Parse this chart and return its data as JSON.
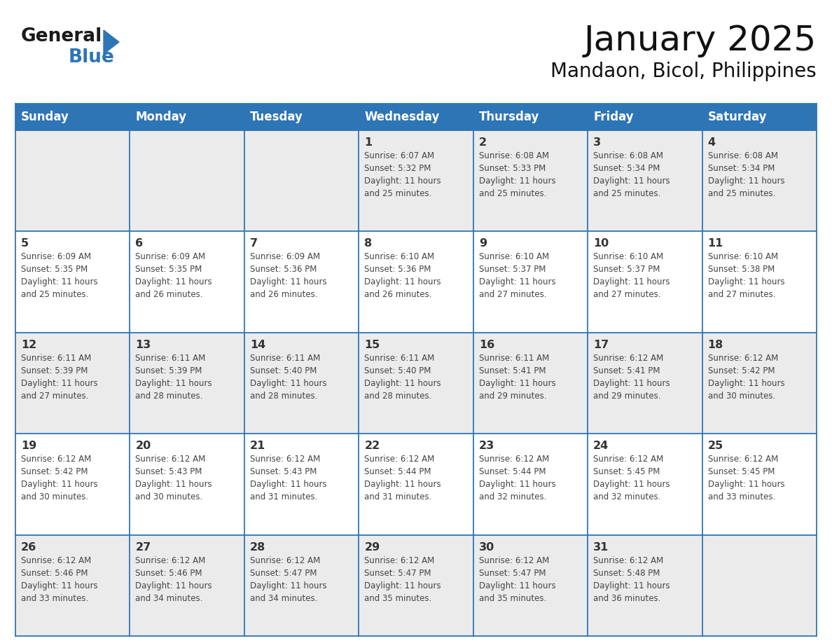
{
  "title": "January 2025",
  "subtitle": "Mandaon, Bicol, Philippines",
  "header_bg": "#2E75B6",
  "header_text_color": "#FFFFFF",
  "days_of_week": [
    "Sunday",
    "Monday",
    "Tuesday",
    "Wednesday",
    "Thursday",
    "Friday",
    "Saturday"
  ],
  "weeks": [
    [
      {
        "day": "",
        "info": ""
      },
      {
        "day": "",
        "info": ""
      },
      {
        "day": "",
        "info": ""
      },
      {
        "day": "1",
        "info": "Sunrise: 6:07 AM\nSunset: 5:32 PM\nDaylight: 11 hours\nand 25 minutes."
      },
      {
        "day": "2",
        "info": "Sunrise: 6:08 AM\nSunset: 5:33 PM\nDaylight: 11 hours\nand 25 minutes."
      },
      {
        "day": "3",
        "info": "Sunrise: 6:08 AM\nSunset: 5:34 PM\nDaylight: 11 hours\nand 25 minutes."
      },
      {
        "day": "4",
        "info": "Sunrise: 6:08 AM\nSunset: 5:34 PM\nDaylight: 11 hours\nand 25 minutes."
      }
    ],
    [
      {
        "day": "5",
        "info": "Sunrise: 6:09 AM\nSunset: 5:35 PM\nDaylight: 11 hours\nand 25 minutes."
      },
      {
        "day": "6",
        "info": "Sunrise: 6:09 AM\nSunset: 5:35 PM\nDaylight: 11 hours\nand 26 minutes."
      },
      {
        "day": "7",
        "info": "Sunrise: 6:09 AM\nSunset: 5:36 PM\nDaylight: 11 hours\nand 26 minutes."
      },
      {
        "day": "8",
        "info": "Sunrise: 6:10 AM\nSunset: 5:36 PM\nDaylight: 11 hours\nand 26 minutes."
      },
      {
        "day": "9",
        "info": "Sunrise: 6:10 AM\nSunset: 5:37 PM\nDaylight: 11 hours\nand 27 minutes."
      },
      {
        "day": "10",
        "info": "Sunrise: 6:10 AM\nSunset: 5:37 PM\nDaylight: 11 hours\nand 27 minutes."
      },
      {
        "day": "11",
        "info": "Sunrise: 6:10 AM\nSunset: 5:38 PM\nDaylight: 11 hours\nand 27 minutes."
      }
    ],
    [
      {
        "day": "12",
        "info": "Sunrise: 6:11 AM\nSunset: 5:39 PM\nDaylight: 11 hours\nand 27 minutes."
      },
      {
        "day": "13",
        "info": "Sunrise: 6:11 AM\nSunset: 5:39 PM\nDaylight: 11 hours\nand 28 minutes."
      },
      {
        "day": "14",
        "info": "Sunrise: 6:11 AM\nSunset: 5:40 PM\nDaylight: 11 hours\nand 28 minutes."
      },
      {
        "day": "15",
        "info": "Sunrise: 6:11 AM\nSunset: 5:40 PM\nDaylight: 11 hours\nand 28 minutes."
      },
      {
        "day": "16",
        "info": "Sunrise: 6:11 AM\nSunset: 5:41 PM\nDaylight: 11 hours\nand 29 minutes."
      },
      {
        "day": "17",
        "info": "Sunrise: 6:12 AM\nSunset: 5:41 PM\nDaylight: 11 hours\nand 29 minutes."
      },
      {
        "day": "18",
        "info": "Sunrise: 6:12 AM\nSunset: 5:42 PM\nDaylight: 11 hours\nand 30 minutes."
      }
    ],
    [
      {
        "day": "19",
        "info": "Sunrise: 6:12 AM\nSunset: 5:42 PM\nDaylight: 11 hours\nand 30 minutes."
      },
      {
        "day": "20",
        "info": "Sunrise: 6:12 AM\nSunset: 5:43 PM\nDaylight: 11 hours\nand 30 minutes."
      },
      {
        "day": "21",
        "info": "Sunrise: 6:12 AM\nSunset: 5:43 PM\nDaylight: 11 hours\nand 31 minutes."
      },
      {
        "day": "22",
        "info": "Sunrise: 6:12 AM\nSunset: 5:44 PM\nDaylight: 11 hours\nand 31 minutes."
      },
      {
        "day": "23",
        "info": "Sunrise: 6:12 AM\nSunset: 5:44 PM\nDaylight: 11 hours\nand 32 minutes."
      },
      {
        "day": "24",
        "info": "Sunrise: 6:12 AM\nSunset: 5:45 PM\nDaylight: 11 hours\nand 32 minutes."
      },
      {
        "day": "25",
        "info": "Sunrise: 6:12 AM\nSunset: 5:45 PM\nDaylight: 11 hours\nand 33 minutes."
      }
    ],
    [
      {
        "day": "26",
        "info": "Sunrise: 6:12 AM\nSunset: 5:46 PM\nDaylight: 11 hours\nand 33 minutes."
      },
      {
        "day": "27",
        "info": "Sunrise: 6:12 AM\nSunset: 5:46 PM\nDaylight: 11 hours\nand 34 minutes."
      },
      {
        "day": "28",
        "info": "Sunrise: 6:12 AM\nSunset: 5:47 PM\nDaylight: 11 hours\nand 34 minutes."
      },
      {
        "day": "29",
        "info": "Sunrise: 6:12 AM\nSunset: 5:47 PM\nDaylight: 11 hours\nand 35 minutes."
      },
      {
        "day": "30",
        "info": "Sunrise: 6:12 AM\nSunset: 5:47 PM\nDaylight: 11 hours\nand 35 minutes."
      },
      {
        "day": "31",
        "info": "Sunrise: 6:12 AM\nSunset: 5:48 PM\nDaylight: 11 hours\nand 36 minutes."
      },
      {
        "day": "",
        "info": ""
      }
    ]
  ],
  "row_bg_colors": [
    "#EBEBEB",
    "#FFFFFF",
    "#EBEBEB",
    "#FFFFFF",
    "#EBEBEB"
  ],
  "grid_color": "#2E75B6",
  "day_number_color": "#333333",
  "info_text_color": "#444444",
  "logo_general_color": "#1a1a1a",
  "logo_blue_color": "#2E75B6",
  "title_color": "#111111",
  "subtitle_color": "#111111"
}
